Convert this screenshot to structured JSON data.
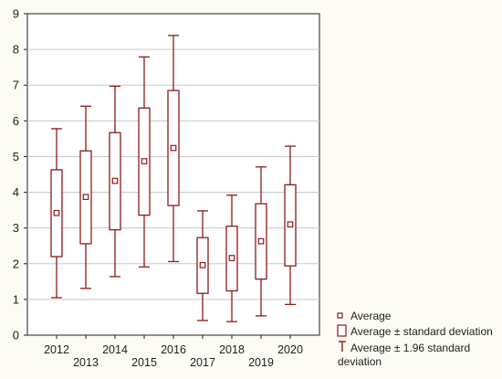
{
  "chart_data": {
    "type": "box",
    "categories": [
      "2012",
      "2013",
      "2014",
      "2015",
      "2016",
      "2017",
      "2018",
      "2019",
      "2020"
    ],
    "average": [
      3.42,
      3.87,
      4.32,
      4.87,
      5.24,
      1.96,
      2.16,
      2.63,
      3.1
    ],
    "sd_lower": [
      2.2,
      2.56,
      2.95,
      3.36,
      3.63,
      1.17,
      1.24,
      1.57,
      1.94
    ],
    "sd_upper": [
      4.63,
      5.16,
      5.67,
      6.36,
      6.85,
      2.73,
      3.05,
      3.68,
      4.21
    ],
    "ci196_lower": [
      1.05,
      1.31,
      1.64,
      1.91,
      2.06,
      0.41,
      0.38,
      0.54,
      0.86
    ],
    "ci196_upper": [
      5.78,
      6.41,
      6.97,
      7.79,
      8.39,
      3.48,
      3.92,
      4.71,
      5.29
    ],
    "ylim": [
      0,
      9
    ],
    "yticks": [
      "0",
      "1",
      "2",
      "3",
      "4",
      "5",
      "6",
      "7",
      "8",
      "9"
    ],
    "grid": true,
    "legend_position": "bottom-right",
    "legend": [
      {
        "marker": "square",
        "label": "Average"
      },
      {
        "marker": "box",
        "label": "Average ± standard deviation"
      },
      {
        "marker": "whisker",
        "label": "Average  ± 1.96 standard deviation"
      }
    ],
    "colors": {
      "series": "#8b1a1a",
      "grid": "#c9c9c9",
      "axis": "#222222",
      "plot_bg": "#ffffff",
      "page_bg": "#fcfbf4"
    }
  }
}
